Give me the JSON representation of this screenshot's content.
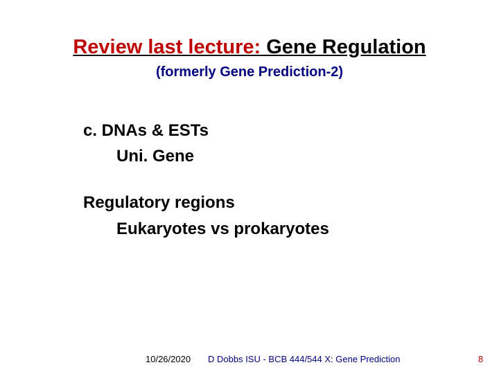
{
  "title": {
    "highlight_text": "Review last lecture:",
    "highlight_color": "#c00000",
    "rest_text": " Gene Regulation",
    "rest_color": "#000000",
    "fontsize": 29
  },
  "subtitle": {
    "text": "(formerly Gene Prediction-2)",
    "color": "#000080",
    "fontsize": 20
  },
  "body": {
    "color": "#000000",
    "fontsize": 24,
    "lines": {
      "l1": "c. DNAs & ESTs",
      "l2": "Uni. Gene",
      "l3": "Regulatory regions",
      "l4": "Eukaryotes vs prokaryotes"
    }
  },
  "footer": {
    "date": "10/26/2020",
    "center": "D Dobbs ISU - BCB 444/544 X: Gene Prediction",
    "pagenum": "8",
    "date_color": "#000000",
    "center_color": "#000080",
    "pagenum_color": "#c00000",
    "fontsize": 13
  },
  "background_color": "#ffffff"
}
